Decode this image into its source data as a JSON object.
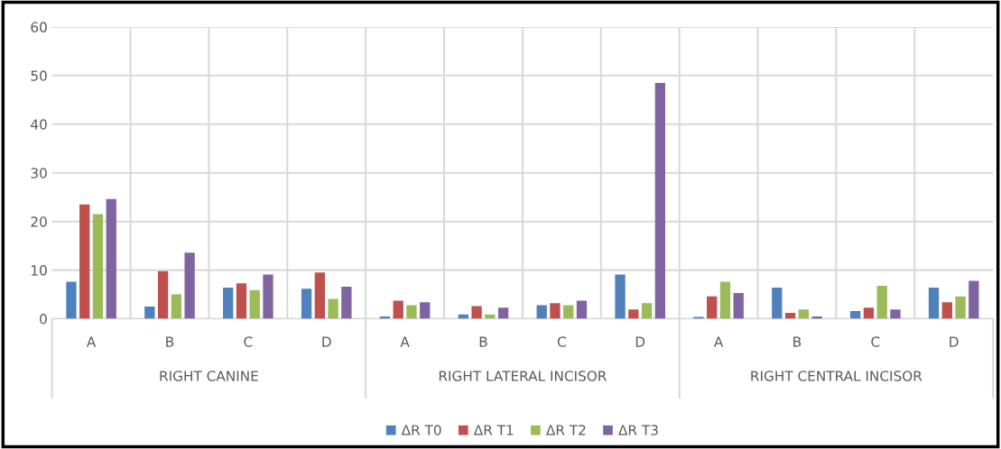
{
  "chart_data": {
    "type": "bar",
    "categories": [
      "A",
      "B",
      "C",
      "D",
      "A",
      "B",
      "C",
      "D",
      "A",
      "B",
      "C",
      "D"
    ],
    "annotations": [
      "RIGHT CANINE",
      "RIGHT LATERAL INCISOR",
      "RIGHT CENTRAL INCISOR"
    ],
    "series": [
      {
        "name": "ΔR T0",
        "color": "#4f81bd",
        "values": [
          7.6,
          2.5,
          6.4,
          6.2,
          0.5,
          0.9,
          2.8,
          9.1,
          0.4,
          6.4,
          1.6,
          6.4
        ]
      },
      {
        "name": "ΔR T1",
        "color": "#c0504d",
        "values": [
          23.5,
          9.8,
          7.3,
          9.5,
          3.7,
          2.6,
          3.2,
          1.9,
          4.6,
          1.2,
          2.3,
          3.4
        ]
      },
      {
        "name": "ΔR T2",
        "color": "#9bbb59",
        "values": [
          21.5,
          5.0,
          5.9,
          4.1,
          2.8,
          0.9,
          2.8,
          3.2,
          7.6,
          1.9,
          6.8,
          4.6
        ]
      },
      {
        "name": "ΔR T3",
        "color": "#8064a2",
        "values": [
          24.6,
          13.6,
          9.1,
          6.6,
          3.4,
          2.3,
          3.7,
          48.5,
          5.3,
          0.5,
          1.9,
          7.8
        ]
      }
    ],
    "ylim": [
      0,
      60
    ],
    "yticks": [
      0,
      10,
      20,
      30,
      40,
      50,
      60
    ],
    "grid": true,
    "legend": "bottom"
  }
}
